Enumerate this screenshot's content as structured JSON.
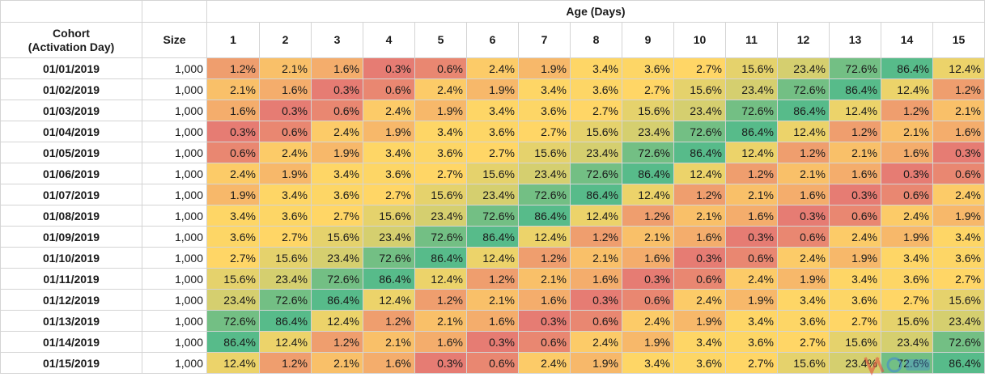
{
  "header": {
    "age_label": "Age (Days)",
    "cohort_label": "Cohort\n(Activation Day)",
    "size_label": "Size"
  },
  "chart_data": {
    "type": "heatmap",
    "title": "",
    "xlabel": "Age (Days)",
    "ylabel": "Cohort (Activation Day)",
    "x": [
      "1",
      "2",
      "3",
      "4",
      "5",
      "6",
      "7",
      "8",
      "9",
      "10",
      "11",
      "12",
      "13",
      "14",
      "15"
    ],
    "y": [
      "01/01/2019",
      "01/02/2019",
      "01/03/2019",
      "01/04/2019",
      "01/05/2019",
      "01/06/2019",
      "01/07/2019",
      "01/08/2019",
      "01/09/2019",
      "01/10/2019",
      "01/11/2019",
      "01/12/2019",
      "01/13/2019",
      "01/14/2019",
      "01/15/2019"
    ],
    "sizes": [
      "1,000",
      "1,000",
      "1,000",
      "1,000",
      "1,000",
      "1,000",
      "1,000",
      "1,000",
      "1,000",
      "1,000",
      "1,000",
      "1,000",
      "1,000",
      "1,000",
      "1,000"
    ],
    "values": [
      [
        1.2,
        2.1,
        1.6,
        0.3,
        0.6,
        2.4,
        1.9,
        3.4,
        3.6,
        2.7,
        15.6,
        23.4,
        72.6,
        86.4,
        12.4
      ],
      [
        2.1,
        1.6,
        0.3,
        0.6,
        2.4,
        1.9,
        3.4,
        3.6,
        2.7,
        15.6,
        23.4,
        72.6,
        86.4,
        12.4,
        1.2
      ],
      [
        1.6,
        0.3,
        0.6,
        2.4,
        1.9,
        3.4,
        3.6,
        2.7,
        15.6,
        23.4,
        72.6,
        86.4,
        12.4,
        1.2,
        2.1
      ],
      [
        0.3,
        0.6,
        2.4,
        1.9,
        3.4,
        3.6,
        2.7,
        15.6,
        23.4,
        72.6,
        86.4,
        12.4,
        1.2,
        2.1,
        1.6
      ],
      [
        0.6,
        2.4,
        1.9,
        3.4,
        3.6,
        2.7,
        15.6,
        23.4,
        72.6,
        86.4,
        12.4,
        1.2,
        2.1,
        1.6,
        0.3
      ],
      [
        2.4,
        1.9,
        3.4,
        3.6,
        2.7,
        15.6,
        23.4,
        72.6,
        86.4,
        12.4,
        1.2,
        2.1,
        1.6,
        0.3,
        0.6
      ],
      [
        1.9,
        3.4,
        3.6,
        2.7,
        15.6,
        23.4,
        72.6,
        86.4,
        12.4,
        1.2,
        2.1,
        1.6,
        0.3,
        0.6,
        2.4
      ],
      [
        3.4,
        3.6,
        2.7,
        15.6,
        23.4,
        72.6,
        86.4,
        12.4,
        1.2,
        2.1,
        1.6,
        0.3,
        0.6,
        2.4,
        1.9
      ],
      [
        3.6,
        2.7,
        15.6,
        23.4,
        72.6,
        86.4,
        12.4,
        1.2,
        2.1,
        1.6,
        0.3,
        0.6,
        2.4,
        1.9,
        3.4
      ],
      [
        2.7,
        15.6,
        23.4,
        72.6,
        86.4,
        12.4,
        1.2,
        2.1,
        1.6,
        0.3,
        0.6,
        2.4,
        1.9,
        3.4,
        3.6
      ],
      [
        15.6,
        23.4,
        72.6,
        86.4,
        12.4,
        1.2,
        2.1,
        1.6,
        0.3,
        0.6,
        2.4,
        1.9,
        3.4,
        3.6,
        2.7
      ],
      [
        23.4,
        72.6,
        86.4,
        12.4,
        1.2,
        2.1,
        1.6,
        0.3,
        0.6,
        2.4,
        1.9,
        3.4,
        3.6,
        2.7,
        15.6
      ],
      [
        72.6,
        86.4,
        12.4,
        1.2,
        2.1,
        1.6,
        0.3,
        0.6,
        2.4,
        1.9,
        3.4,
        3.6,
        2.7,
        15.6,
        23.4
      ],
      [
        86.4,
        12.4,
        1.2,
        2.1,
        1.6,
        0.3,
        0.6,
        2.4,
        1.9,
        3.4,
        3.6,
        2.7,
        15.6,
        23.4,
        72.6
      ],
      [
        12.4,
        1.2,
        2.1,
        1.6,
        0.3,
        0.6,
        2.4,
        1.9,
        3.4,
        3.6,
        2.7,
        15.6,
        23.4,
        72.6,
        86.4
      ]
    ],
    "value_suffix": "%",
    "color_scale": {
      "low": "#e67c73",
      "mid": "#ffd666",
      "high": "#57bb8a"
    },
    "grid": true
  }
}
